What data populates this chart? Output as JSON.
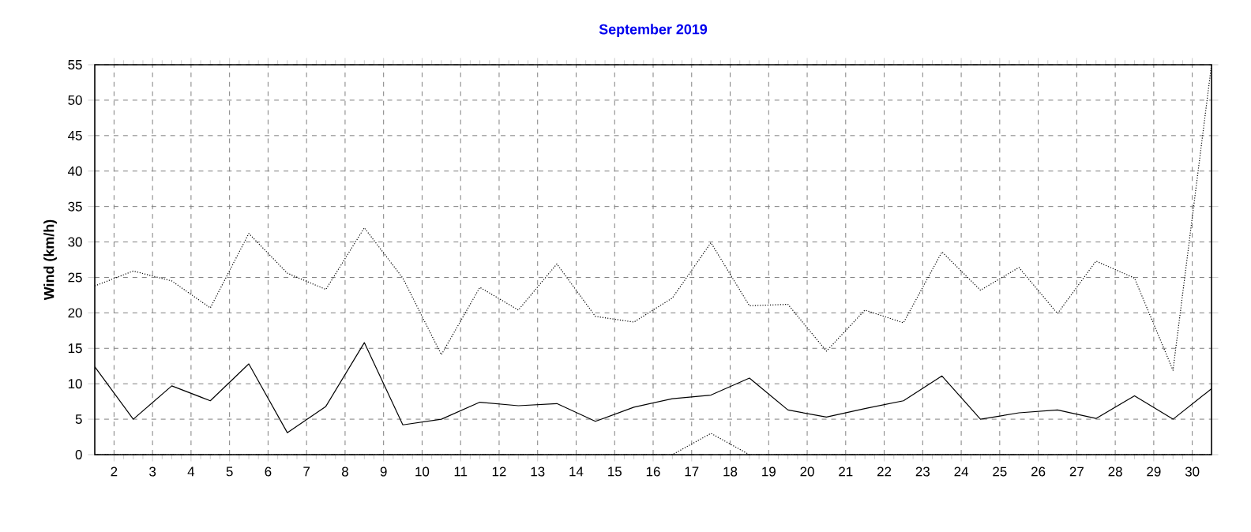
{
  "chart_data": {
    "type": "line",
    "title": "September 2019",
    "ylabel": "Wind  (km/h)",
    "x": [
      1.5,
      2.5,
      3.5,
      4.5,
      5.5,
      6.5,
      7.5,
      8.5,
      9.5,
      10.5,
      11.5,
      12.5,
      13.5,
      14.5,
      15.5,
      16.5,
      17.5,
      18.5,
      19.5,
      20.5,
      21.5,
      22.5,
      23.5,
      24.5,
      25.5,
      26.5,
      27.5,
      28.5,
      29.5,
      30.5
    ],
    "series": [
      {
        "color": "#000000",
        "line_style": "dotted",
        "values": [
          23.8,
          25.9,
          24.5,
          20.7,
          31.2,
          25.6,
          23.3,
          32.0,
          24.9,
          14.1,
          23.6,
          20.4,
          26.9,
          19.5,
          18.7,
          22.1,
          29.9,
          21.0,
          21.2,
          14.6,
          20.4,
          18.6,
          28.6,
          23.2,
          26.4,
          19.9,
          27.3,
          24.9,
          11.9,
          55
        ]
      },
      {
        "color": "#000000",
        "line_style": "solid",
        "values": [
          12.4,
          5.0,
          9.7,
          7.6,
          12.8,
          3.1,
          6.8,
          15.8,
          4.2,
          5.0,
          7.4,
          6.9,
          7.2,
          4.7,
          6.7,
          7.9,
          8.4,
          10.8,
          6.3,
          5.3,
          6.5,
          7.6,
          11.1,
          5.0,
          5.9,
          6.3,
          5.1,
          8.3,
          5.0,
          9.3
        ]
      },
      {
        "color": "#000000",
        "line_style": "dotted",
        "values": [
          0,
          0,
          0,
          0,
          0,
          0,
          0,
          0,
          0,
          0,
          0,
          0,
          0,
          0,
          0,
          0,
          3.0,
          0,
          0,
          0,
          0,
          0,
          0,
          0,
          0,
          0,
          0,
          0,
          0,
          0
        ]
      }
    ],
    "xlim": [
      1.5,
      30.5
    ],
    "ylim": [
      0,
      55
    ],
    "xticks": [
      2,
      3,
      4,
      5,
      6,
      7,
      8,
      9,
      10,
      11,
      12,
      13,
      14,
      15,
      16,
      17,
      18,
      19,
      20,
      21,
      22,
      23,
      24,
      25,
      26,
      27,
      28,
      29,
      30
    ],
    "yticks": [
      0,
      5,
      10,
      15,
      20,
      25,
      30,
      35,
      40,
      45,
      50,
      55
    ],
    "grid": true,
    "marker": "none",
    "legend": false
  }
}
